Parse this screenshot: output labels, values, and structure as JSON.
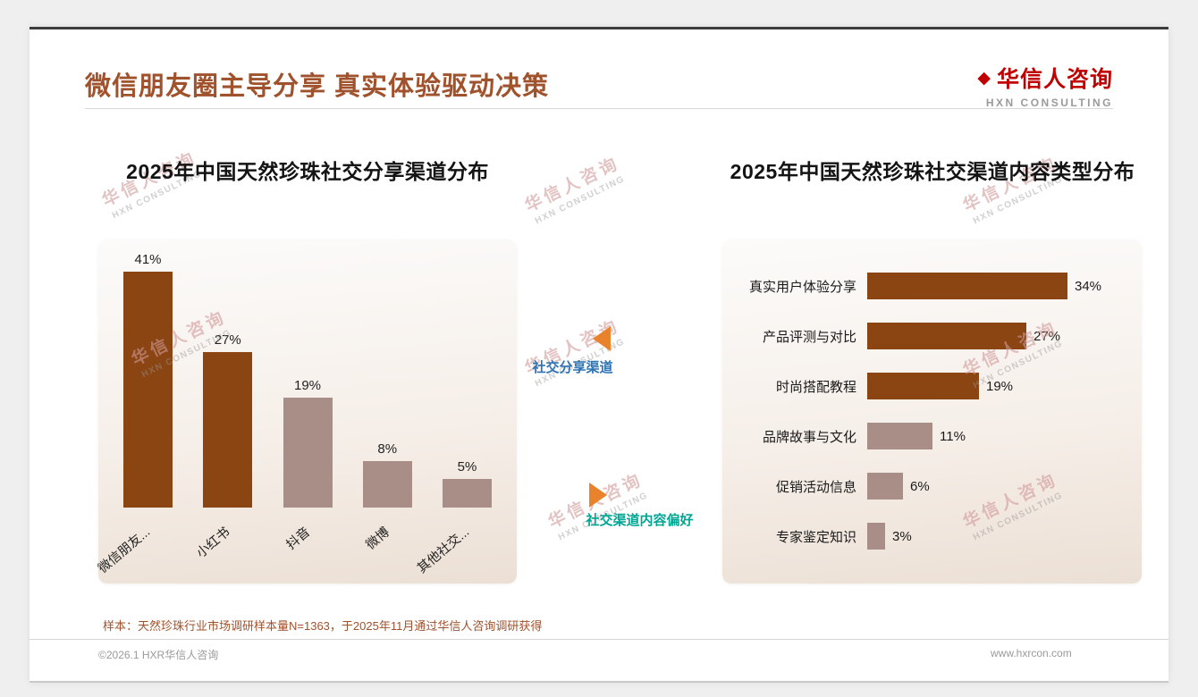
{
  "header": {
    "title": "微信朋友圈主导分享 真实体验驱动决策",
    "logo": {
      "icon_glyph": "◆",
      "name_cn": "华信人咨询",
      "name_en": "HXN CONSULTING"
    }
  },
  "watermark": {
    "cn": "华信人咨询",
    "en": "HXN CONSULTING"
  },
  "annotations": {
    "share_channel": {
      "label": "社交分享渠道",
      "color": "#2E74B5",
      "arrow_color": "#E8822B",
      "direction": "left"
    },
    "content_pref": {
      "label": "社交渠道内容偏好",
      "color": "#00A693",
      "arrow_color": "#E8822B",
      "direction": "right"
    }
  },
  "chart_data": [
    {
      "type": "bar",
      "orientation": "vertical",
      "title": "2025年中国天然珍珠社交分享渠道分布",
      "categories": [
        "微信朋友...",
        "小红书",
        "抖音",
        "微博",
        "其他社交..."
      ],
      "values": [
        41,
        27,
        19,
        8,
        5
      ],
      "unit": "%",
      "bar_colors": [
        "#8B4513",
        "#8B4513",
        "#A98E88",
        "#A98E88",
        "#A98E88"
      ],
      "ylim": [
        0,
        45
      ],
      "grid": false,
      "legend": false
    },
    {
      "type": "bar",
      "orientation": "horizontal",
      "title": "2025年中国天然珍珠社交渠道内容类型分布",
      "categories": [
        "真实用户体验分享",
        "产品评测与对比",
        "时尚搭配教程",
        "品牌故事与文化",
        "促销活动信息",
        "专家鉴定知识"
      ],
      "values": [
        34,
        27,
        19,
        11,
        6,
        3
      ],
      "unit": "%",
      "bar_colors": [
        "#8B4513",
        "#8B4513",
        "#8B4513",
        "#A98E88",
        "#A98E88",
        "#A98E88"
      ],
      "xlim": [
        0,
        40
      ],
      "grid": false,
      "legend": false
    }
  ],
  "footer": {
    "sample_note": "样本：天然珍珠行业市场调研样本量N=1363，于2025年11月通过华信人咨询调研获得",
    "copyright": "©2026.1 HXR华信人咨询",
    "website": "www.hxrcon.com"
  },
  "colors": {
    "title": "#A0522D",
    "bar_dark": "#8B4513",
    "bar_light": "#A98E88",
    "logo_red": "#C00000",
    "note_brown": "#A0522D",
    "watermark_pink": "#D9A7A7",
    "panel_gradient_top": "#FCFBFA",
    "panel_gradient_bottom": "#ECE0D5"
  }
}
